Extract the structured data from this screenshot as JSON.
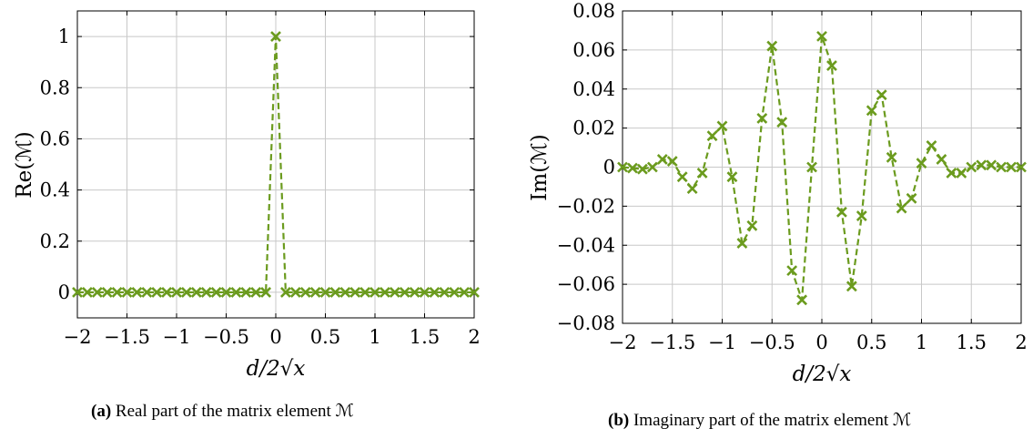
{
  "colors": {
    "series": "#6b9b1e",
    "grid": "#c8c8c8"
  },
  "captions": [
    {
      "tag": "(a)",
      "text": "Real part of the matrix element ℳ"
    },
    {
      "tag": "(b)",
      "text": "Imaginary part of the matrix element ℳ"
    }
  ],
  "chart_data": [
    {
      "type": "line",
      "marker": "x",
      "linestyle": "dashed",
      "grid": true,
      "xlabel": "d/2√x",
      "ylabel": "Re(ℳ)",
      "xlim": [
        -2,
        2
      ],
      "ylim": [
        -0.1,
        1.1
      ],
      "xticks": [
        -2,
        -1.5,
        -1,
        -0.5,
        0,
        0.5,
        1,
        1.5,
        2
      ],
      "xtick_labels": [
        "−2",
        "−1.5",
        "−1",
        "−0.5",
        "0",
        "0.5",
        "1",
        "1.5",
        "2"
      ],
      "yticks": [
        0,
        0.2,
        0.4,
        0.6,
        0.8,
        1
      ],
      "ytick_labels": [
        "0",
        "0.2",
        "0.4",
        "0.6",
        "0.8",
        "1"
      ],
      "series": [
        {
          "x": [
            -2,
            -1.9,
            -1.8,
            -1.7,
            -1.6,
            -1.5,
            -1.4,
            -1.3,
            -1.2,
            -1.1,
            -1,
            -0.9,
            -0.8,
            -0.7,
            -0.6,
            -0.5,
            -0.4,
            -0.3,
            -0.2,
            -0.1,
            0,
            0.1,
            0.2,
            0.3,
            0.4,
            0.5,
            0.6,
            0.7,
            0.8,
            0.9,
            1,
            1.1,
            1.2,
            1.3,
            1.4,
            1.5,
            1.6,
            1.7,
            1.8,
            1.9,
            2
          ],
          "y": [
            0,
            0,
            0,
            0,
            0,
            0,
            0,
            0,
            0,
            0,
            0,
            0,
            0,
            0,
            0,
            0,
            0,
            0,
            0,
            0,
            1,
            0,
            0,
            0,
            0,
            0,
            0,
            0,
            0,
            0,
            0,
            0,
            0,
            0,
            0,
            0,
            0,
            0,
            0,
            0,
            0
          ]
        }
      ]
    },
    {
      "type": "line",
      "marker": "x",
      "linestyle": "dashed",
      "grid": true,
      "xlabel": "d/2√x",
      "ylabel": "Im(ℳ)",
      "xlim": [
        -2,
        2
      ],
      "ylim": [
        -0.08,
        0.08
      ],
      "xticks": [
        -2,
        -1.5,
        -1,
        -0.5,
        0,
        0.5,
        1,
        1.5,
        2
      ],
      "xtick_labels": [
        "−2",
        "−1.5",
        "−1",
        "−0.5",
        "0",
        "0.5",
        "1",
        "1.5",
        "2"
      ],
      "yticks": [
        -0.08,
        -0.06,
        -0.04,
        -0.02,
        0,
        0.02,
        0.04,
        0.06,
        0.08
      ],
      "ytick_labels": [
        "−0.08",
        "−0.06",
        "−0.04",
        "−0.02",
        "0",
        "0.02",
        "0.04",
        "0.06",
        "0.08"
      ],
      "series": [
        {
          "x": [
            -2,
            -1.9,
            -1.8,
            -1.7,
            -1.6,
            -1.5,
            -1.4,
            -1.3,
            -1.2,
            -1.1,
            -1,
            -0.9,
            -0.8,
            -0.7,
            -0.6,
            -0.5,
            -0.4,
            -0.3,
            -0.2,
            -0.1,
            0,
            0.1,
            0.2,
            0.3,
            0.4,
            0.5,
            0.6,
            0.7,
            0.8,
            0.9,
            1,
            1.1,
            1.2,
            1.3,
            1.4,
            1.5,
            1.6,
            1.7,
            1.8,
            1.9,
            2
          ],
          "y": [
            0,
            -0.0005,
            -0.001,
            0,
            0.004,
            0.003,
            -0.005,
            -0.011,
            -0.003,
            0.016,
            0.021,
            -0.005,
            -0.039,
            -0.03,
            0.025,
            0.062,
            0.023,
            -0.053,
            -0.068,
            0,
            0.067,
            0.052,
            -0.023,
            -0.061,
            -0.025,
            0.029,
            0.037,
            0.005,
            -0.021,
            -0.016,
            0.002,
            0.011,
            0.004,
            -0.003,
            -0.003,
            0,
            0.001,
            0.001,
            0,
            0,
            0
          ]
        }
      ]
    }
  ]
}
